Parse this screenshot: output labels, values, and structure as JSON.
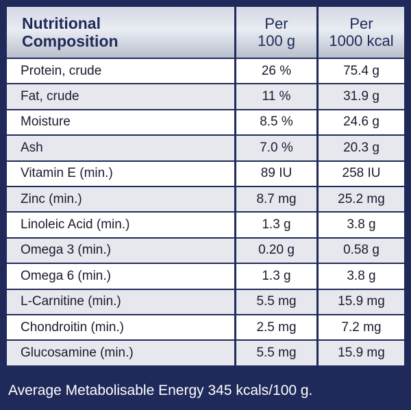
{
  "header": {
    "title_line1": "Nutritional",
    "title_line2": "Composition",
    "col2_line1": "Per",
    "col2_line2": "100 g",
    "col3_line1": "Per",
    "col3_line2": "1000 kcal"
  },
  "rows": [
    {
      "label": "Protein, crude",
      "per100g": "26 %",
      "per1000kcal": "75.4 g"
    },
    {
      "label": "Fat, crude",
      "per100g": "11 %",
      "per1000kcal": "31.9 g"
    },
    {
      "label": "Moisture",
      "per100g": "8.5 %",
      "per1000kcal": "24.6 g"
    },
    {
      "label": "Ash",
      "per100g": "7.0 %",
      "per1000kcal": "20.3 g"
    },
    {
      "label": "Vitamin E (min.)",
      "per100g": "89 IU",
      "per1000kcal": "258 IU"
    },
    {
      "label": "Zinc (min.)",
      "per100g": "8.7 mg",
      "per1000kcal": "25.2 mg"
    },
    {
      "label": "Linoleic Acid (min.)",
      "per100g": "1.3 g",
      "per1000kcal": "3.8 g"
    },
    {
      "label": "Omega 3 (min.)",
      "per100g": "0.20 g",
      "per1000kcal": "0.58 g"
    },
    {
      "label": "Omega 6 (min.)",
      "per100g": "1.3 g",
      "per1000kcal": "3.8 g"
    },
    {
      "label": "L-Carnitine (min.)",
      "per100g": "5.5 mg",
      "per1000kcal": "15.9 mg"
    },
    {
      "label": "Chondroitin (min.)",
      "per100g": "2.5 mg",
      "per1000kcal": "7.2 mg"
    },
    {
      "label": "Glucosamine (min.)",
      "per100g": "5.5 mg",
      "per1000kcal": "15.9 mg"
    }
  ],
  "footer": "Average Metabolisable Energy 345 kcals/100 g.",
  "colors": {
    "navy": "#1f2a5a",
    "row_alt": "#e6e8ee",
    "header_silver": "#d3d8e3"
  }
}
